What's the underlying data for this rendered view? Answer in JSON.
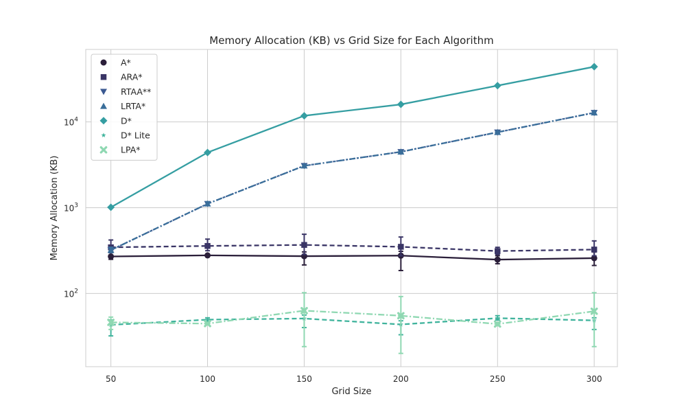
{
  "chart_data": {
    "type": "line",
    "title": "Memory Allocation (KB) vs Grid Size for Each Algorithm",
    "xlabel": "Grid Size",
    "ylabel": "Memory Allocation (KB)",
    "x": [
      50,
      100,
      150,
      200,
      250,
      300
    ],
    "xticks": [
      "50",
      "100",
      "150",
      "200",
      "250",
      "300"
    ],
    "xlim": [
      37,
      312
    ],
    "yscale": "log",
    "ylim": [
      14,
      70000
    ],
    "yticks": [
      {
        "value": 100,
        "base": "10",
        "exp": "2"
      },
      {
        "value": 1000,
        "base": "10",
        "exp": "3"
      },
      {
        "value": 10000,
        "base": "10",
        "exp": "4"
      }
    ],
    "grid": true,
    "legend_position": "top-left",
    "series": [
      {
        "name": "A*",
        "color": "#2b1f3a",
        "marker": "circle",
        "dash": "solid",
        "values": [
          270,
          278,
          272,
          276,
          248,
          258
        ],
        "err_low": [
          250,
          278,
          215,
          185,
          222,
          212
        ],
        "err_high": [
          300,
          278,
          305,
          310,
          275,
          305
        ]
      },
      {
        "name": "ARA*",
        "color": "#3a3566",
        "marker": "square",
        "dash": "dashed",
        "values": [
          345,
          358,
          368,
          350,
          312,
          325
        ],
        "err_low": [
          300,
          315,
          285,
          275,
          285,
          275
        ],
        "err_high": [
          420,
          430,
          490,
          455,
          345,
          410
        ]
      },
      {
        "name": "RTAA**",
        "color": "#3c5a92",
        "marker": "triangle-down",
        "dash": "dotted",
        "values": [
          320,
          1110,
          3080,
          4480,
          7580,
          12800
        ],
        "err_low": [
          300,
          1060,
          2980,
          4380,
          7380,
          12300
        ],
        "err_high": [
          345,
          1170,
          3170,
          4580,
          7780,
          13300
        ]
      },
      {
        "name": "LRTA*",
        "color": "#3a6e9a",
        "marker": "triangle-up",
        "dash": "dashdot",
        "values": [
          320,
          1110,
          3080,
          4480,
          7580,
          12800
        ],
        "err_low": [
          300,
          1060,
          2980,
          4380,
          7380,
          12300
        ],
        "err_high": [
          345,
          1170,
          3170,
          4580,
          7780,
          13300
        ]
      },
      {
        "name": "D*",
        "color": "#359ea2",
        "marker": "diamond",
        "dash": "solid",
        "values": [
          1010,
          4400,
          11800,
          16000,
          26500,
          44000
        ],
        "err_low": [
          1010,
          4400,
          11800,
          16000,
          26500,
          44000
        ],
        "err_high": [
          1010,
          4400,
          11800,
          16000,
          26500,
          44000
        ]
      },
      {
        "name": "D* Lite",
        "color": "#3fb39c",
        "marker": "star",
        "dash": "dashed",
        "values": [
          43,
          49.5,
          51,
          43.5,
          51.5,
          48.5
        ],
        "err_low": [
          32,
          45,
          40,
          33,
          49,
          38
        ],
        "err_high": [
          49,
          52,
          56,
          48,
          55,
          52
        ]
      },
      {
        "name": "LPA*",
        "color": "#8fd8b2",
        "marker": "x",
        "dash": "dashdot",
        "values": [
          46,
          44.5,
          63,
          55,
          44,
          62
        ],
        "err_low": [
          38,
          43,
          24,
          20,
          42,
          24
        ],
        "err_high": [
          53,
          46,
          102,
          92,
          46,
          102
        ]
      }
    ]
  }
}
